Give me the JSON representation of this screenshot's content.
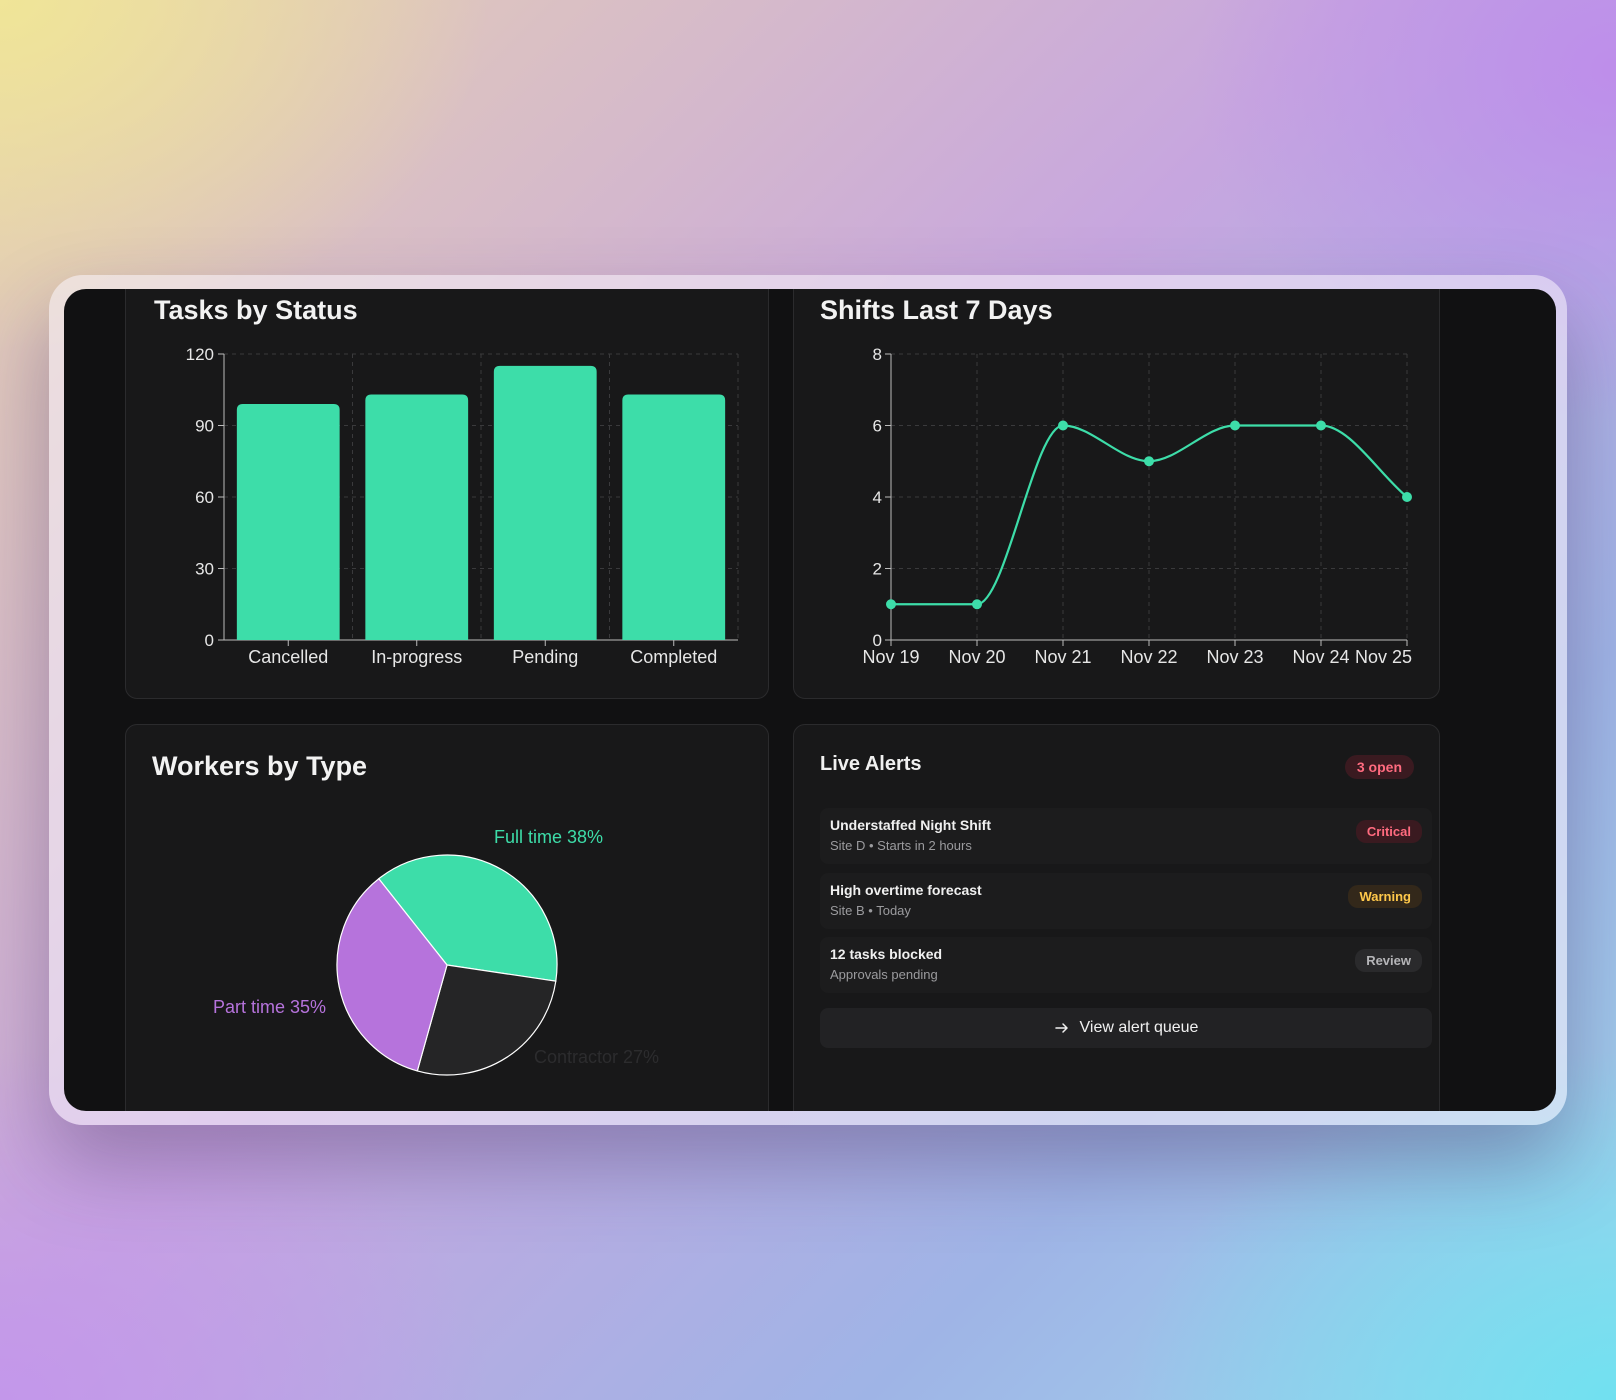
{
  "tasks_card": {
    "title": "Tasks by Status"
  },
  "shifts_card": {
    "title": "Shifts Last 7 Days"
  },
  "workers_card": {
    "title": "Workers by Type"
  },
  "alerts_card": {
    "title": "Live Alerts",
    "open_count": "3 open",
    "items": [
      {
        "title": "Understaffed Night Shift",
        "meta": "Site D • Starts in 2 hours",
        "badge": "Critical"
      },
      {
        "title": "High overtime forecast",
        "meta": "Site B • Today",
        "badge": "Warning"
      },
      {
        "title": "12 tasks blocked",
        "meta": "Approvals pending",
        "badge": "Review"
      }
    ],
    "queue_button": "View alert queue",
    "queue_icon": "arrow-right-icon"
  },
  "colors": {
    "accent": "#3ddda9",
    "purple": "#b673dc",
    "critical": "#ff6b7f",
    "warning": "#ffc84a",
    "dark_slice": "#252526"
  },
  "chart_data": [
    {
      "type": "bar",
      "title": "Tasks by Status",
      "categories": [
        "Cancelled",
        "In-progress",
        "Pending",
        "Completed"
      ],
      "values": [
        99,
        103,
        115,
        103
      ],
      "ylim": [
        0,
        120
      ],
      "yticks": [
        "0",
        "30",
        "60",
        "90",
        "120"
      ],
      "grid": true
    },
    {
      "type": "line",
      "title": "Shifts Last 7 Days",
      "x": [
        "Nov 19",
        "Nov 20",
        "Nov 21",
        "Nov 22",
        "Nov 23",
        "Nov 24",
        "Nov 25"
      ],
      "values": [
        1,
        1,
        6,
        5,
        6,
        6,
        4
      ],
      "ylim": [
        0,
        8
      ],
      "yticks": [
        "0",
        "2",
        "4",
        "6",
        "8"
      ],
      "grid": true
    },
    {
      "type": "pie",
      "title": "Workers by Type",
      "slices": [
        {
          "label": "Full time 38%",
          "value": 38
        },
        {
          "label": "Contractor 27%",
          "value": 27
        },
        {
          "label": "Part time 35%",
          "value": 35
        }
      ]
    }
  ]
}
